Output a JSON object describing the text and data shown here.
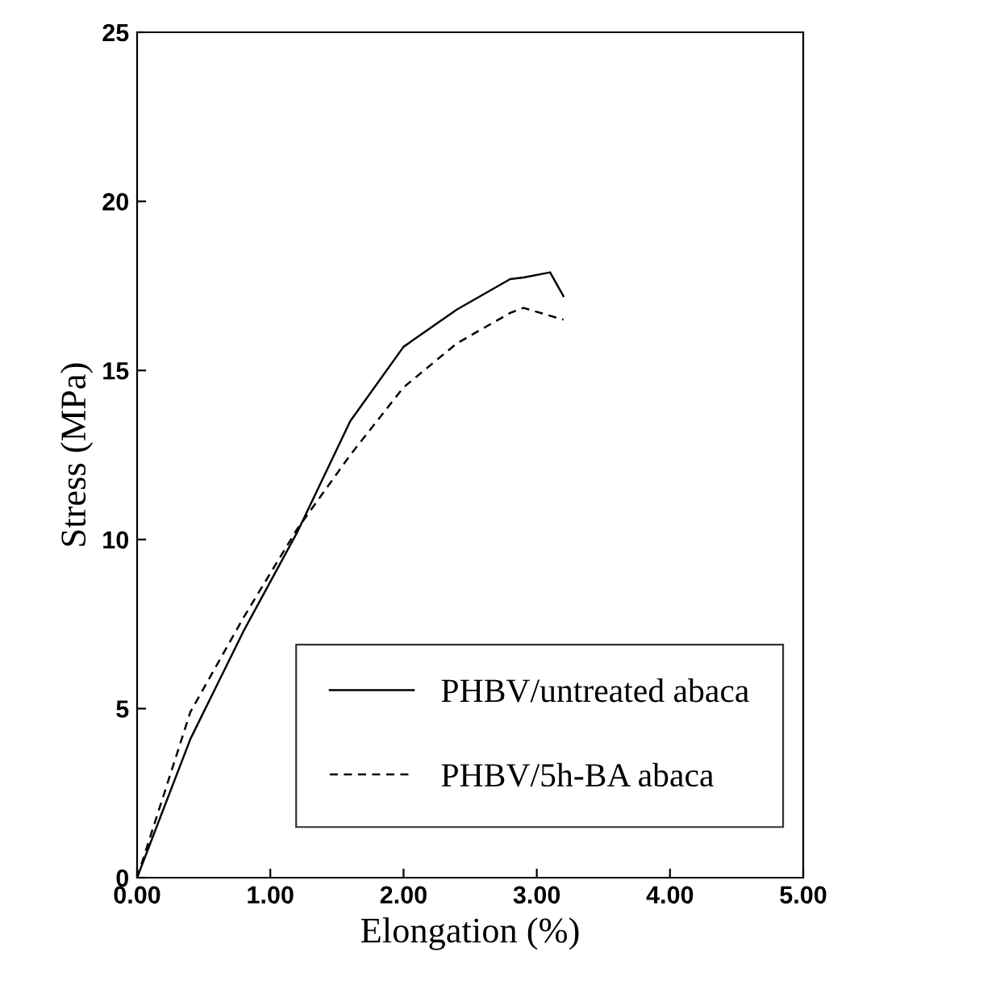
{
  "chart_data": {
    "type": "line",
    "xlabel": "Elongation (%)",
    "ylabel": "Stress (MPa)",
    "xlim": [
      0,
      5
    ],
    "ylim": [
      0,
      25
    ],
    "xticks": [
      {
        "value": 0,
        "label": "0.00"
      },
      {
        "value": 1,
        "label": "1.00"
      },
      {
        "value": 2,
        "label": "2.00"
      },
      {
        "value": 3,
        "label": "3.00"
      },
      {
        "value": 4,
        "label": "4.00"
      },
      {
        "value": 5,
        "label": "5.00"
      }
    ],
    "yticks": [
      0,
      5,
      10,
      15,
      20,
      25
    ],
    "grid": false,
    "legend": "bottom right",
    "marker": "none",
    "series": [
      {
        "name": "PHBV/untreated abaca",
        "color": "#000000",
        "line_style": "solid",
        "x": [
          0,
          0.4,
          0.8,
          1.2,
          1.6,
          2.0,
          2.4,
          2.8,
          2.9,
          3.1,
          3.2
        ],
        "values": [
          0,
          4.1,
          7.3,
          10.2,
          13.5,
          15.7,
          16.8,
          17.7,
          17.75,
          17.9,
          17.2
        ]
      },
      {
        "name": "PHBV/5h-BA abaca",
        "color": "#000000",
        "line_style": "dashed",
        "x": [
          0,
          0.4,
          0.8,
          1.2,
          1.6,
          2.0,
          2.4,
          2.8,
          2.9,
          3.2
        ],
        "values": [
          0,
          4.9,
          7.7,
          10.3,
          12.5,
          14.5,
          15.8,
          16.7,
          16.85,
          16.5
        ]
      }
    ]
  }
}
